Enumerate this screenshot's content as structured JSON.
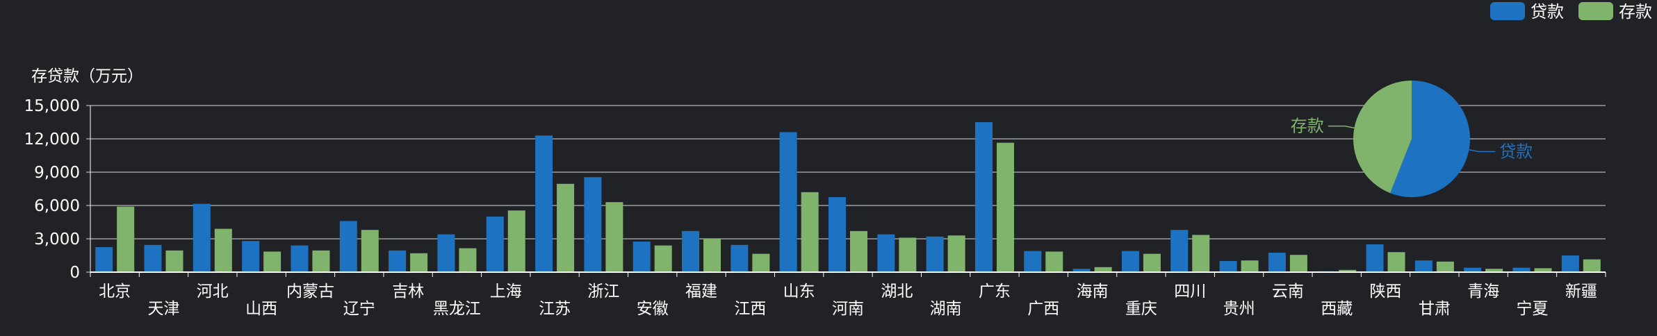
{
  "chart_data": [
    {
      "type": "bar",
      "ylabel": "存贷款（万元）",
      "ylim": [
        0,
        15000
      ],
      "y_ticks": [
        "0",
        "3,000",
        "6,000",
        "9,000",
        "12,000",
        "15,000"
      ],
      "grid": true,
      "legend_placement": "top-right",
      "categories": [
        "北京",
        "天津",
        "河北",
        "山西",
        "内蒙古",
        "辽宁",
        "吉林",
        "黑龙江",
        "上海",
        "江苏",
        "浙江",
        "安徽",
        "福建",
        "江西",
        "山东",
        "河南",
        "湖北",
        "湖南",
        "广东",
        "广西",
        "海南",
        "重庆",
        "四川",
        "贵州",
        "云南",
        "西藏",
        "陕西",
        "甘肃",
        "青海",
        "宁夏",
        "新疆"
      ],
      "series": [
        {
          "name": "贷款",
          "color": "#1e72c2",
          "values": [
            2250,
            2450,
            6150,
            2800,
            2400,
            4600,
            1950,
            3400,
            5000,
            12300,
            8550,
            2750,
            3700,
            2450,
            12600,
            6750,
            3400,
            3200,
            13500,
            1900,
            300,
            1900,
            3800,
            1000,
            1750,
            80,
            2500,
            1050,
            400,
            400,
            1500
          ]
        },
        {
          "name": "存款",
          "color": "#80b46c",
          "values": [
            5900,
            1950,
            3900,
            1850,
            1950,
            3800,
            1700,
            2150,
            5550,
            7950,
            6300,
            2400,
            3000,
            1650,
            7200,
            3700,
            3100,
            3300,
            11650,
            1850,
            450,
            1650,
            3350,
            1050,
            1550,
            200,
            1800,
            950,
            300,
            350,
            1150
          ]
        }
      ]
    },
    {
      "type": "pie",
      "slices": [
        {
          "label": "贷款",
          "value": 56,
          "color": "#1e72c2"
        },
        {
          "label": "存款",
          "value": 44,
          "color": "#80b46c"
        }
      ]
    }
  ],
  "legend": [
    {
      "label": "贷款",
      "color": "#1e72c2"
    },
    {
      "label": "存款",
      "color": "#80b46c"
    }
  ]
}
